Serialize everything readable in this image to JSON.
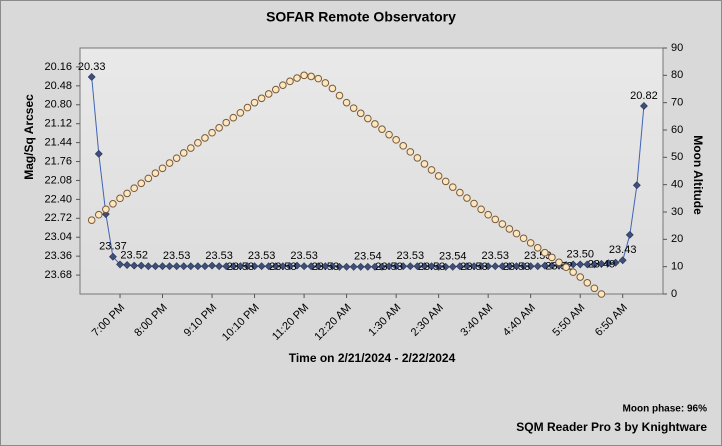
{
  "chart_data": {
    "type": "line",
    "title": "SOFAR Remote Observatory",
    "x_label": "Time on 2/21/2024 - 2/22/2024",
    "y_label": "Mag/Sq Arcsec",
    "y2_label": "Moon Altitude",
    "footer_note": "Moon phase: 96%",
    "footer_credit": "SQM Reader Pro 3 by Knightware",
    "categories": [
      null,
      null,
      null,
      null,
      "7:00 PM",
      null,
      null,
      null,
      null,
      null,
      "8:00 PM",
      null,
      null,
      null,
      null,
      null,
      null,
      "9:10 PM",
      null,
      null,
      null,
      null,
      null,
      "10:10 PM",
      null,
      null,
      null,
      null,
      null,
      null,
      "11:20 PM",
      null,
      null,
      null,
      null,
      null,
      "12:20 AM",
      null,
      null,
      null,
      null,
      null,
      null,
      "1:30 AM",
      null,
      null,
      null,
      null,
      null,
      "2:30 AM",
      null,
      null,
      null,
      null,
      null,
      null,
      "3:40 AM",
      null,
      null,
      null,
      null,
      null,
      "4:40 AM",
      null,
      null,
      null,
      null,
      null,
      null,
      "5:50 AM",
      null,
      null,
      null,
      null,
      null,
      "6:50 AM",
      null,
      null,
      null
    ],
    "y_inverted": true,
    "ylim": [
      19.84,
      24.0
    ],
    "yticks": [
      20.16,
      20.48,
      {
        "value": 20.8,
        "label": "20.80"
      },
      21.12,
      21.44,
      21.76,
      22.08,
      {
        "value": 22.4,
        "label": "22.40"
      },
      22.72,
      23.04,
      23.36,
      23.68
    ],
    "y2lim": [
      0,
      90
    ],
    "y2ticks": [
      0,
      10,
      20,
      30,
      40,
      50,
      60,
      70,
      80,
      90
    ],
    "series": [
      {
        "color": "#3f63b8",
        "marker_color": "#3d4f7a",
        "marker": "diamond",
        "values": [
          20.33,
          21.63,
          22.65,
          23.37,
          23.5,
          23.51,
          23.52,
          23.52,
          23.53,
          23.53,
          23.53,
          23.53,
          23.53,
          23.53,
          23.53,
          23.53,
          23.53,
          23.52,
          23.53,
          23.53,
          23.53,
          23.53,
          23.53,
          23.53,
          23.53,
          23.53,
          23.53,
          23.53,
          23.53,
          23.52,
          23.53,
          23.53,
          23.53,
          23.53,
          23.53,
          23.54,
          23.54,
          23.54,
          23.54,
          23.54,
          23.54,
          23.54,
          23.53,
          23.53,
          23.53,
          23.53,
          23.53,
          23.53,
          23.53,
          23.54,
          23.54,
          23.54,
          23.53,
          23.53,
          23.53,
          23.53,
          23.53,
          23.53,
          23.53,
          23.53,
          23.53,
          23.53,
          23.53,
          23.53,
          23.52,
          23.52,
          23.52,
          23.51,
          23.5,
          23.5,
          23.5,
          23.5,
          23.49,
          23.48,
          23.47,
          23.43,
          23.0,
          22.16,
          20.82
        ],
        "value_labels": [
          "20.33",
          null,
          null,
          "23.37",
          null,
          null,
          "23.52",
          null,
          null,
          null,
          null,
          null,
          "23.53",
          null,
          null,
          null,
          null,
          null,
          "23.53",
          null,
          null,
          "23.53",
          null,
          null,
          "23.53",
          null,
          null,
          "23.53",
          null,
          null,
          "23.53",
          null,
          null,
          "23.53",
          null,
          null,
          null,
          null,
          null,
          "23.54",
          null,
          null,
          "23.53",
          null,
          null,
          "23.53",
          null,
          null,
          "23.53",
          null,
          null,
          "23.54",
          null,
          null,
          "23.53",
          null,
          null,
          "23.53",
          null,
          null,
          "23.53",
          null,
          null,
          "23.53",
          null,
          null,
          "23.52",
          null,
          null,
          "23.50",
          null,
          null,
          "23.49",
          null,
          null,
          "23.43",
          null,
          null,
          "20.82"
        ]
      },
      {
        "axis": "y2",
        "color": "#fde7c0",
        "marker_stroke": "#7a5a38",
        "marker": "circle",
        "values": [
          27,
          29,
          31,
          33,
          35,
          36.8,
          38.7,
          40.5,
          42.3,
          44.2,
          46,
          47.9,
          49.7,
          51.6,
          53.4,
          55.3,
          57.1,
          59,
          60.8,
          62.7,
          64.5,
          66.3,
          68.2,
          70,
          71.6,
          73.2,
          74.8,
          76.4,
          77.8,
          79,
          80,
          79.6,
          78.8,
          77.2,
          75.2,
          72.6,
          70,
          68,
          66.1,
          64.2,
          62.2,
          60.3,
          58.3,
          56.4,
          54.2,
          52,
          49.8,
          47.6,
          45.4,
          43.2,
          41.2,
          39.1,
          37.1,
          35.1,
          33.1,
          31,
          29,
          27.3,
          25.6,
          23.8,
          22.1,
          20.4,
          18.7,
          16.9,
          15.1,
          13.4,
          11.6,
          9.8,
          8,
          6.2,
          4.1,
          2.1,
          0,
          null,
          null,
          null,
          null,
          null,
          null
        ]
      }
    ]
  }
}
